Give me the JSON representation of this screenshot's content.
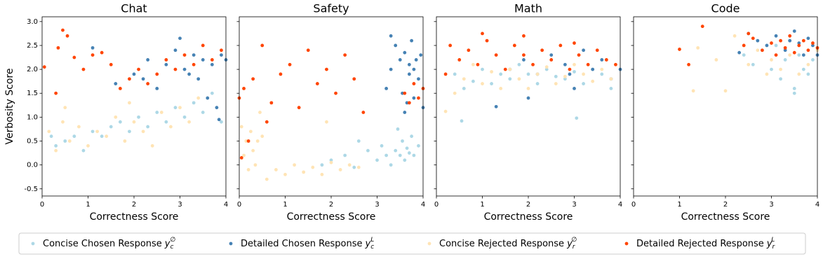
{
  "chart_data": [
    {
      "type": "scatter",
      "title": "Chat",
      "xlabel": "Correctness Score",
      "ylabel": "Verbosity Score",
      "xlim": [
        0,
        4
      ],
      "xticks": [
        0,
        1,
        2,
        3,
        4
      ],
      "ylim": [
        -0.65,
        3.1
      ],
      "yticks": [
        -0.5,
        {
          "value": 0,
          "label": "0.0"
        },
        0.5,
        {
          "value": 1,
          "label": "1.0"
        },
        1.5,
        {
          "value": 2,
          "label": "2.0"
        },
        2.5,
        {
          "value": 3,
          "label": "3.0"
        }
      ],
      "series": [
        {
          "name": "Concise Chosen Response",
          "symbol": {
            "base": "y",
            "sub": "c",
            "sup": "∅"
          },
          "color": "#add8e6",
          "x": [
            0.3,
            0.5,
            0.7,
            0.9,
            1.1,
            1.3,
            1.5,
            1.7,
            1.9,
            2.1,
            2.3,
            2.5,
            2.7,
            2.9,
            3.1,
            3.3,
            3.5,
            3.7,
            3.9,
            0.2
          ],
          "y": [
            0.4,
            0.5,
            0.6,
            0.3,
            0.7,
            0.6,
            0.8,
            0.9,
            0.7,
            1.0,
            0.8,
            1.1,
            0.9,
            1.2,
            1.0,
            1.3,
            1.1,
            1.5,
            0.9,
            0.6
          ]
        },
        {
          "name": "Detailed Chosen Response",
          "symbol": {
            "base": "y",
            "sub": "c",
            "sup": "L"
          },
          "color": "#4682b4",
          "x": [
            1.1,
            1.6,
            2.0,
            2.3,
            2.5,
            2.7,
            2.9,
            3.0,
            3.1,
            3.3,
            3.4,
            3.5,
            3.6,
            3.7,
            3.8,
            3.9,
            4.0,
            3.85,
            3.2,
            2.2
          ],
          "y": [
            2.45,
            1.7,
            1.9,
            2.2,
            1.6,
            2.1,
            2.4,
            2.65,
            2.0,
            2.3,
            1.8,
            2.2,
            1.4,
            2.1,
            1.2,
            2.3,
            2.2,
            0.95,
            1.9,
            1.8
          ]
        },
        {
          "name": "Concise Rejected Response",
          "symbol": {
            "base": "y",
            "sub": "r",
            "sup": "∅"
          },
          "color": "#ffe4b5",
          "x": [
            0.15,
            0.3,
            0.45,
            0.6,
            0.8,
            1.0,
            1.2,
            1.4,
            1.6,
            1.8,
            2.0,
            2.2,
            2.4,
            2.6,
            2.8,
            3.0,
            3.2,
            3.4,
            0.5,
            1.9
          ],
          "y": [
            0.7,
            0.3,
            0.9,
            0.5,
            0.8,
            0.4,
            0.7,
            0.6,
            1.0,
            0.5,
            0.9,
            0.7,
            0.4,
            1.1,
            0.8,
            1.2,
            0.9,
            1.4,
            1.2,
            1.3
          ]
        },
        {
          "name": "Detailed Rejected Response",
          "symbol": {
            "base": "y",
            "sub": "r",
            "sup": "L"
          },
          "color": "#ff4500",
          "x": [
            0.05,
            0.35,
            0.45,
            0.55,
            0.7,
            0.9,
            1.1,
            1.3,
            1.5,
            1.7,
            1.9,
            2.1,
            2.3,
            2.5,
            2.7,
            2.9,
            3.1,
            3.3,
            3.5,
            3.7,
            3.9,
            0.3
          ],
          "y": [
            2.05,
            2.45,
            2.82,
            2.7,
            2.25,
            2.0,
            2.3,
            2.35,
            2.1,
            1.6,
            1.8,
            2.0,
            1.7,
            1.9,
            2.2,
            2.0,
            2.3,
            2.1,
            2.5,
            2.2,
            2.4,
            1.5
          ]
        }
      ]
    },
    {
      "type": "scatter",
      "title": "Safety",
      "xlabel": "Correctness Score",
      "xlim": [
        0,
        4
      ],
      "xticks": [
        0,
        1,
        2,
        3,
        4
      ],
      "ylim": [
        -0.65,
        3.1
      ],
      "yticks": [
        -0.5,
        0,
        0.5,
        1,
        1.5,
        2,
        2.5,
        3
      ],
      "series": [
        {
          "color": "#add8e6",
          "x": [
            2.0,
            2.3,
            2.6,
            2.8,
            3.0,
            3.1,
            3.2,
            3.3,
            3.4,
            3.5,
            3.55,
            3.6,
            3.65,
            3.7,
            3.75,
            3.8,
            3.9,
            2.5,
            1.8,
            3.45
          ],
          "y": [
            0.1,
            0.2,
            0.5,
            0.3,
            0.1,
            0.4,
            0.2,
            0.0,
            0.3,
            0.2,
            0.5,
            0.1,
            0.35,
            0.25,
            0.6,
            0.2,
            0.4,
            -0.05,
            0.0,
            0.75
          ]
        },
        {
          "color": "#4682b4",
          "x": [
            3.2,
            3.3,
            3.4,
            3.5,
            3.55,
            3.6,
            3.65,
            3.7,
            3.75,
            3.8,
            3.85,
            3.9,
            3.95,
            4.0,
            3.6,
            3.7,
            3.8,
            3.3
          ],
          "y": [
            1.6,
            2.0,
            2.5,
            2.2,
            1.5,
            2.35,
            1.3,
            2.1,
            2.6,
            1.4,
            2.2,
            1.8,
            2.3,
            1.2,
            1.1,
            1.9,
            2.0,
            2.7
          ]
        },
        {
          "color": "#ffe4b5",
          "x": [
            0.05,
            0.1,
            0.15,
            0.2,
            0.25,
            0.3,
            0.35,
            0.4,
            0.5,
            0.6,
            0.8,
            1.0,
            1.2,
            1.4,
            1.6,
            1.8,
            2.0,
            2.2,
            2.4,
            2.6,
            1.9,
            0.45
          ],
          "y": [
            0.8,
            0.2,
            0.5,
            -0.1,
            0.7,
            0.3,
            0.0,
            0.5,
            0.6,
            -0.3,
            -0.1,
            -0.2,
            0.0,
            -0.15,
            -0.05,
            -0.2,
            0.05,
            -0.1,
            0.0,
            -0.05,
            0.9,
            1.1
          ]
        },
        {
          "color": "#ff4500",
          "x": [
            0.0,
            0.1,
            0.2,
            0.3,
            0.5,
            0.7,
            0.9,
            1.1,
            1.3,
            1.5,
            1.7,
            1.9,
            2.1,
            2.3,
            2.5,
            2.7,
            3.6,
            3.7,
            3.8,
            3.9,
            4.0,
            0.05,
            0.6
          ],
          "y": [
            1.4,
            1.6,
            0.5,
            1.8,
            2.5,
            1.3,
            1.9,
            2.1,
            1.2,
            2.4,
            1.7,
            2.0,
            1.5,
            2.3,
            1.8,
            1.1,
            1.5,
            1.3,
            1.7,
            1.4,
            1.6,
            0.15,
            0.9
          ]
        }
      ]
    },
    {
      "type": "scatter",
      "title": "Math",
      "xlabel": "Correctness Score",
      "xlim": [
        0,
        4
      ],
      "xticks": [
        0,
        1,
        2,
        3,
        4
      ],
      "ylim": [
        -0.65,
        3.1
      ],
      "yticks": [
        -0.5,
        0,
        0.5,
        1,
        1.5,
        2,
        2.5,
        3
      ],
      "series": [
        {
          "color": "#add8e6",
          "x": [
            0.4,
            0.6,
            0.8,
            1.0,
            1.2,
            1.4,
            1.6,
            1.8,
            2.0,
            2.2,
            2.4,
            2.6,
            2.8,
            3.0,
            3.2,
            3.4,
            3.6,
            3.8,
            0.55,
            3.05
          ],
          "y": [
            1.9,
            1.6,
            1.75,
            2.0,
            1.7,
            1.9,
            1.8,
            2.1,
            1.9,
            1.7,
            2.0,
            1.85,
            1.8,
            1.95,
            1.7,
            2.0,
            1.9,
            1.6,
            0.92,
            0.98
          ]
        },
        {
          "color": "#4682b4",
          "x": [
            1.3,
            1.6,
            1.9,
            2.2,
            2.5,
            2.8,
            3.0,
            3.2,
            3.4,
            3.6,
            3.8,
            4.0,
            2.0,
            2.9
          ],
          "y": [
            1.22,
            2.0,
            2.2,
            1.9,
            2.3,
            2.1,
            1.6,
            2.4,
            2.0,
            2.2,
            1.8,
            2.0,
            1.4,
            1.9
          ]
        },
        {
          "color": "#ffe4b5",
          "x": [
            0.2,
            0.4,
            0.6,
            0.8,
            1.0,
            1.2,
            1.4,
            1.6,
            1.8,
            2.0,
            2.2,
            2.4,
            2.6,
            2.8,
            3.0,
            3.2,
            3.4,
            3.6,
            3.8
          ],
          "y": [
            1.12,
            1.5,
            1.8,
            2.1,
            1.7,
            1.95,
            1.6,
            2.0,
            1.8,
            1.6,
            1.9,
            2.05,
            1.7,
            1.85,
            2.1,
            1.9,
            1.75,
            2.0,
            1.8
          ]
        },
        {
          "color": "#ff4500",
          "x": [
            0.3,
            0.5,
            0.7,
            0.9,
            1.1,
            1.3,
            1.5,
            1.7,
            1.9,
            2.1,
            2.3,
            2.5,
            2.7,
            2.9,
            3.1,
            3.3,
            3.5,
            3.7,
            3.9,
            1.0,
            1.9,
            3.0,
            0.2
          ],
          "y": [
            2.5,
            2.2,
            2.4,
            2.1,
            2.6,
            2.3,
            2.0,
            2.5,
            2.3,
            2.1,
            2.4,
            2.2,
            2.5,
            2.0,
            2.3,
            2.1,
            2.4,
            2.2,
            2.1,
            2.75,
            2.7,
            2.55,
            1.9
          ]
        }
      ]
    },
    {
      "type": "scatter",
      "title": "Code",
      "xlabel": "Correctness Score",
      "xlim": [
        0,
        4
      ],
      "xticks": [
        0,
        1,
        2,
        3,
        4
      ],
      "ylim": [
        -0.65,
        3.1
      ],
      "yticks": [
        -0.5,
        0,
        0.5,
        1,
        1.5,
        2,
        2.5,
        3
      ],
      "series": [
        {
          "color": "#add8e6",
          "x": [
            2.4,
            2.6,
            2.8,
            3.0,
            3.1,
            3.2,
            3.3,
            3.4,
            3.5,
            3.6,
            3.7,
            3.8,
            3.9,
            3.5
          ],
          "y": [
            2.3,
            2.1,
            2.4,
            2.0,
            2.5,
            1.8,
            2.2,
            2.6,
            1.6,
            2.3,
            2.0,
            1.9,
            2.2,
            1.5
          ]
        },
        {
          "color": "#4682b4",
          "x": [
            2.3,
            2.5,
            2.7,
            2.9,
            3.1,
            3.3,
            3.5,
            3.6,
            3.7,
            3.8,
            3.9,
            4.0,
            3.4
          ],
          "y": [
            2.35,
            2.75,
            2.6,
            2.5,
            2.7,
            2.4,
            2.8,
            2.55,
            2.3,
            2.65,
            2.5,
            2.3,
            2.6
          ]
        },
        {
          "color": "#ffe4b5",
          "x": [
            1.4,
            1.8,
            2.0,
            2.2,
            2.5,
            2.7,
            2.9,
            3.0,
            3.2,
            3.4,
            3.6,
            3.8,
            4.0,
            1.3
          ],
          "y": [
            2.45,
            2.2,
            1.55,
            2.7,
            2.1,
            2.4,
            1.9,
            2.2,
            2.0,
            2.3,
            1.9,
            2.1,
            2.4,
            1.55
          ]
        },
        {
          "color": "#ff4500",
          "x": [
            1.0,
            1.2,
            1.5,
            2.4,
            2.6,
            2.8,
            3.0,
            3.1,
            3.2,
            3.3,
            3.4,
            3.5,
            3.6,
            3.7,
            3.8,
            3.9,
            4.0,
            2.5
          ],
          "y": [
            2.42,
            2.1,
            2.9,
            2.5,
            2.65,
            2.4,
            2.55,
            2.3,
            2.6,
            2.45,
            2.7,
            2.35,
            2.5,
            2.6,
            2.4,
            2.55,
            2.45,
            2.75
          ]
        }
      ]
    }
  ]
}
